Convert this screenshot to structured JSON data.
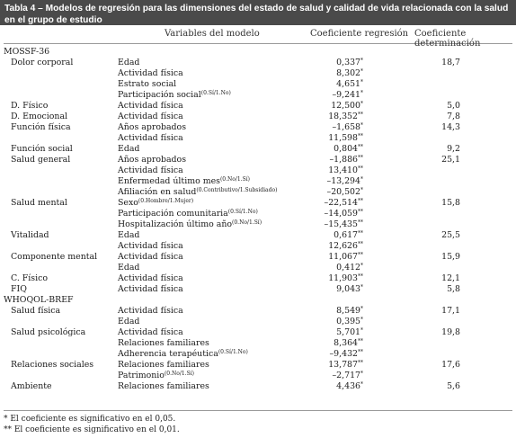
{
  "table": {
    "title": "Tabla 4 – Modelos de regresión para las dimensiones del estado de salud y calidad de vida relacionada con la salud\nen el grupo de estudio",
    "headers": {
      "variable": "Variables del modelo",
      "coef": "Coeficiente regresión",
      "det": "Coeficiente determinación"
    },
    "rows": [
      {
        "dim": "MOSSF-36",
        "level": 0,
        "var": "",
        "sup": "",
        "coef": "",
        "csig": "",
        "det": ""
      },
      {
        "dim": "Dolor corporal",
        "level": 1,
        "var": "Edad",
        "sup": "",
        "coef": "0,337",
        "csig": "*",
        "det": "18,7"
      },
      {
        "dim": "",
        "level": 1,
        "var": "Actividad física",
        "sup": "",
        "coef": "8,302",
        "csig": "*",
        "det": ""
      },
      {
        "dim": "",
        "level": 1,
        "var": "Estrato social",
        "sup": "",
        "coef": "4,651",
        "csig": "*",
        "det": ""
      },
      {
        "dim": "",
        "level": 1,
        "var": "Participación social",
        "sup": "(0.Sí/1.No)",
        "coef": "–9,241",
        "csig": "*",
        "det": ""
      },
      {
        "dim": "D. Físico",
        "level": 1,
        "var": "Actividad física",
        "sup": "",
        "coef": "12,500",
        "csig": "*",
        "det": "5,0"
      },
      {
        "dim": "D. Emocional",
        "level": 1,
        "var": "Actividad física",
        "sup": "",
        "coef": "18,352",
        "csig": "**",
        "det": "7,8"
      },
      {
        "dim": "Función física",
        "level": 1,
        "var": "Años aprobados",
        "sup": "",
        "coef": "–1,658",
        "csig": "*",
        "det": "14,3"
      },
      {
        "dim": "",
        "level": 1,
        "var": "Actividad física",
        "sup": "",
        "coef": "11,598",
        "csig": "**",
        "det": ""
      },
      {
        "dim": "Función social",
        "level": 1,
        "var": "Edad",
        "sup": "",
        "coef": "0,804",
        "csig": "**",
        "det": "9,2"
      },
      {
        "dim": "Salud general",
        "level": 1,
        "var": "Años aprobados",
        "sup": "",
        "coef": "–1,886",
        "csig": "**",
        "det": "25,1"
      },
      {
        "dim": "",
        "level": 1,
        "var": "Actividad física",
        "sup": "",
        "coef": "13,410",
        "csig": "**",
        "det": ""
      },
      {
        "dim": "",
        "level": 1,
        "var": "Enfermedad último mes",
        "sup": "(0.No/1.Sí)",
        "coef": "–13,294",
        "csig": "*",
        "det": ""
      },
      {
        "dim": "",
        "level": 1,
        "var": "Afiliación en salud",
        "sup": "(0.Contributivo/1.Subsidiado)",
        "coef": "–20,502",
        "csig": "*",
        "det": ""
      },
      {
        "dim": "Salud mental",
        "level": 1,
        "var": "Sexo",
        "sup": "(0.Hombre/1.Mujer)",
        "coef": "–22,514",
        "csig": "**",
        "det": "15,8"
      },
      {
        "dim": "",
        "level": 1,
        "var": "Participación comunitaria",
        "sup": "(0.Sí/1.No)",
        "coef": "–14,059",
        "csig": "**",
        "det": ""
      },
      {
        "dim": "",
        "level": 1,
        "var": "Hospitalización último año",
        "sup": "(0.No/1.Sí)",
        "coef": "–15,435",
        "csig": "**",
        "det": ""
      },
      {
        "dim": "Vitalidad",
        "level": 1,
        "var": "Edad",
        "sup": "",
        "coef": "0,617",
        "csig": "**",
        "det": "25,5"
      },
      {
        "dim": "",
        "level": 1,
        "var": "Actividad física",
        "sup": "",
        "coef": "12,626",
        "csig": "**",
        "det": ""
      },
      {
        "dim": "Componente mental",
        "level": 1,
        "var": "Actividad física",
        "sup": "",
        "coef": "11,067",
        "csig": "**",
        "det": "15,9"
      },
      {
        "dim": "",
        "level": 1,
        "var": "Edad",
        "sup": "",
        "coef": "0,412",
        "csig": "*",
        "det": ""
      },
      {
        "dim": "C. Físico",
        "level": 1,
        "var": "Actividad física",
        "sup": "",
        "coef": "11,903",
        "csig": "**",
        "det": "12,1"
      },
      {
        "dim": "FIQ",
        "level": 1,
        "var": "Actividad física",
        "sup": "",
        "coef": "9,043",
        "csig": "*",
        "det": "5,8"
      },
      {
        "dim": "WHOQOL-BREF",
        "level": 0,
        "var": "",
        "sup": "",
        "coef": "",
        "csig": "",
        "det": ""
      },
      {
        "dim": "Salud física",
        "level": 1,
        "var": "Actividad física",
        "sup": "",
        "coef": "8,549",
        "csig": "*",
        "det": "17,1"
      },
      {
        "dim": "",
        "level": 1,
        "var": "Edad",
        "sup": "",
        "coef": "0,395",
        "csig": "*",
        "det": ""
      },
      {
        "dim": "Salud psicológica",
        "level": 1,
        "var": "Actividad física",
        "sup": "",
        "coef": "5,701",
        "csig": "*",
        "det": "19,8"
      },
      {
        "dim": "",
        "level": 1,
        "var": "Relaciones familiares",
        "sup": "",
        "coef": "8,364",
        "csig": "**",
        "det": ""
      },
      {
        "dim": "",
        "level": 1,
        "var": "Adherencia terapéutica",
        "sup": "(0.Sí/1.No)",
        "coef": "–9,432",
        "csig": "**",
        "det": ""
      },
      {
        "dim": "Relaciones sociales",
        "level": 1,
        "var": "Relaciones familiares",
        "sup": "",
        "coef": "13,787",
        "csig": "**",
        "det": "17,6"
      },
      {
        "dim": "",
        "level": 1,
        "var": "Patrimonio",
        "sup": "(0.No/1.Sí)",
        "coef": "–2,717",
        "csig": "*",
        "det": ""
      },
      {
        "dim": "Ambiente",
        "level": 1,
        "var": "Relaciones familiares",
        "sup": "",
        "coef": "4,436",
        "csig": "*",
        "det": "5,6"
      }
    ],
    "footnotes": [
      "* El coeficiente es significativo en el 0,05.",
      "** El coeficiente es significativo en el 0,01."
    ]
  }
}
